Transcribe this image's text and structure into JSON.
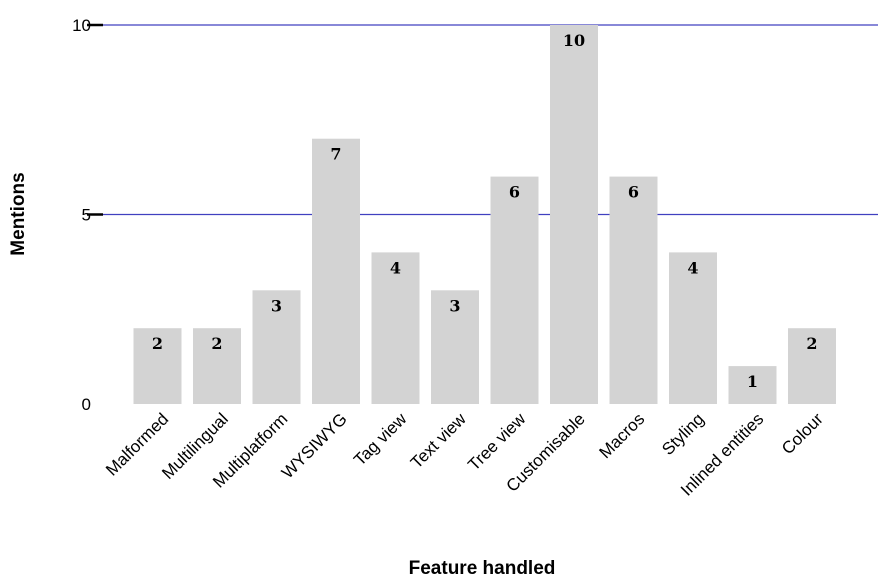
{
  "chart_data": {
    "type": "bar",
    "title": "",
    "xlabel": "Feature handled",
    "ylabel": "Mentions",
    "categories": [
      "Malformed",
      "Multilingual",
      "Multiplatform",
      "WYSIWYG",
      "Tag view",
      "Text view",
      "Tree view",
      "Customisable",
      "Macros",
      "Styling",
      "Inlined entities",
      "Colour"
    ],
    "values": [
      2,
      2,
      3,
      7,
      4,
      3,
      6,
      10,
      6,
      4,
      1,
      2
    ],
    "ylim": [
      0,
      10
    ],
    "yticks": [
      0,
      5,
      10
    ],
    "grid": true,
    "legend": "none",
    "colors": {
      "bar": "#d3d3d3",
      "gridline": "#4040c0",
      "text": "#000000"
    }
  }
}
